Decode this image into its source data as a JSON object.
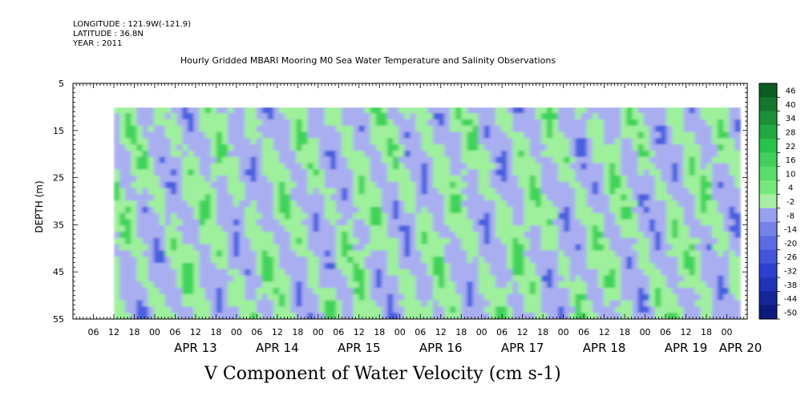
{
  "header": {
    "longitude": "LONGITUDE : 121.9W(-121.9)",
    "latitude": "LATITUDE : 36.8N",
    "year": "YEAR : 2011"
  },
  "chart_data": {
    "type": "heatmap",
    "title": "Hourly Gridded MBARI Mooring M0 Sea Water Temperature and Salinity Observations",
    "variable_label": "V Component of Water Velocity (cm s-1)",
    "ylabel": "DEPTH (m)",
    "ylim": [
      5,
      55
    ],
    "y_inverted": true,
    "y_ticks": [
      5,
      15,
      25,
      35,
      45,
      55
    ],
    "data_depth_range": [
      10,
      55
    ],
    "x_start": "2011-04-12 00:00",
    "x_end": "2011-04-20 06:00",
    "data_time_range": [
      "2011-04-12 12:00",
      "2011-04-20 04:00"
    ],
    "x_hour_ticks": [
      "06",
      "12",
      "18",
      "00",
      "06",
      "12",
      "18",
      "00",
      "06",
      "12",
      "18",
      "00",
      "06",
      "12",
      "18",
      "00",
      "06",
      "12",
      "18",
      "00",
      "06",
      "12",
      "18",
      "00",
      "06",
      "12",
      "18",
      "00",
      "06",
      "12",
      "18",
      "00"
    ],
    "x_day_labels": [
      "APR 13",
      "APR 14",
      "APR 15",
      "APR 16",
      "APR 17",
      "APR 18",
      "APR 19",
      "APR 20"
    ],
    "colorbar": {
      "levels": [
        46,
        40,
        34,
        28,
        22,
        16,
        10,
        4,
        -2,
        -8,
        -14,
        -20,
        -26,
        -32,
        -38,
        -44,
        -50
      ],
      "range": [
        -50,
        52
      ],
      "colors": {
        "strong_positive": "#0b5a1f",
        "positive": "#3fd35a",
        "weak_positive": "#9ff09c",
        "weak_negative": "#a9aef0",
        "negative": "#4a5fe0",
        "strong_negative": "#081a7a"
      }
    },
    "grid": false
  }
}
